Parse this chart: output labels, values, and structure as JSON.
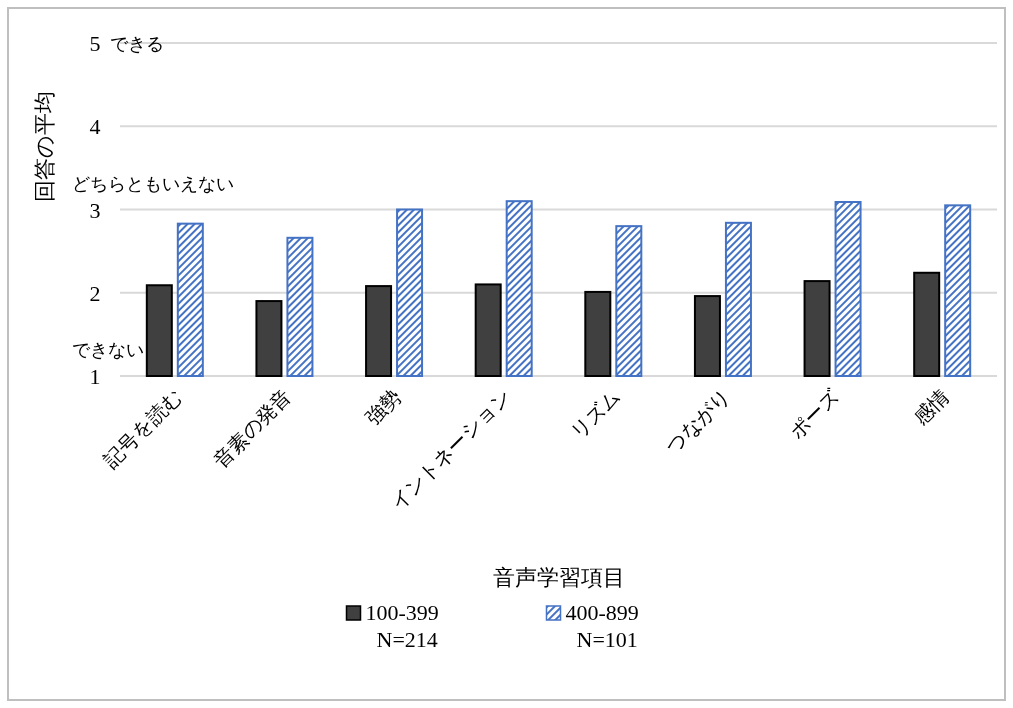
{
  "chart_data": {
    "type": "bar",
    "xlabel": "音声学習項目",
    "ylabel": "回答の平均",
    "categories": [
      "記号を読む",
      "音素の発音",
      "強勢",
      "イントネーション",
      "リズム",
      "つながり",
      "ポーズ",
      "感情"
    ],
    "series": [
      {
        "name": "100-399\nN=214",
        "color": "#404040",
        "values": [
          2.09,
          1.9,
          2.08,
          2.1,
          2.01,
          1.96,
          2.14,
          2.24
        ]
      },
      {
        "name": "400-899\nN=101",
        "color": "#4472c4",
        "values": [
          2.83,
          2.66,
          3.0,
          3.1,
          2.8,
          2.84,
          3.09,
          3.05
        ]
      }
    ],
    "ylim": [
      1,
      5
    ],
    "yticks": [
      1,
      2,
      3,
      4,
      5
    ],
    "grid": "y",
    "legend": "bottom",
    "annotations": [
      "できる",
      "どちらともいえない",
      "できない"
    ]
  }
}
